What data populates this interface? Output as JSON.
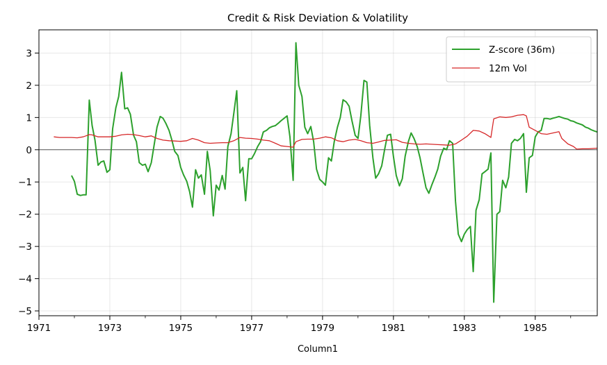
{
  "chart_data": {
    "type": "line",
    "title": "Credit & Risk Deviation & Volatility",
    "xlabel": "Column1",
    "ylabel": "",
    "xlim": [
      1971.0,
      1986.75
    ],
    "ylim": [
      -5.15,
      3.72
    ],
    "x_ticks": [
      1971,
      1973,
      1975,
      1977,
      1979,
      1981,
      1983,
      1985
    ],
    "x_tick_labels": [
      "1971",
      "1973",
      "1975",
      "1977",
      "1979",
      "1981",
      "1983",
      "1985"
    ],
    "y_ticks": [
      -5,
      -4,
      -3,
      -2,
      -1,
      0,
      1,
      2,
      3
    ],
    "y_tick_labels": [
      "−5",
      "−4",
      "−3",
      "−2",
      "−1",
      "0",
      "1",
      "2",
      "3"
    ],
    "grid": true,
    "legend_position": "top-right",
    "reference_line": 0,
    "series": [
      {
        "name": "Z-score (36m)",
        "color": "#2ca02c",
        "points": [
          [
            1971.92,
            -0.8
          ],
          [
            1972.0,
            -0.98
          ],
          [
            1972.08,
            -1.38
          ],
          [
            1972.17,
            -1.42
          ],
          [
            1972.25,
            -1.4
          ],
          [
            1972.33,
            -1.4
          ],
          [
            1972.42,
            1.54
          ],
          [
            1972.5,
            0.75
          ],
          [
            1972.58,
            0.3
          ],
          [
            1972.67,
            -0.48
          ],
          [
            1972.75,
            -0.38
          ],
          [
            1972.83,
            -0.35
          ],
          [
            1972.92,
            -0.7
          ],
          [
            1973.0,
            -0.62
          ],
          [
            1973.08,
            0.65
          ],
          [
            1973.17,
            1.3
          ],
          [
            1973.25,
            1.65
          ],
          [
            1973.33,
            2.4
          ],
          [
            1973.42,
            1.27
          ],
          [
            1973.5,
            1.3
          ],
          [
            1973.58,
            1.1
          ],
          [
            1973.67,
            0.45
          ],
          [
            1973.75,
            0.25
          ],
          [
            1973.83,
            -0.4
          ],
          [
            1973.92,
            -0.48
          ],
          [
            1974.0,
            -0.45
          ],
          [
            1974.08,
            -0.68
          ],
          [
            1974.17,
            -0.4
          ],
          [
            1974.25,
            0.15
          ],
          [
            1974.33,
            0.7
          ],
          [
            1974.42,
            1.03
          ],
          [
            1974.5,
            0.98
          ],
          [
            1974.58,
            0.82
          ],
          [
            1974.67,
            0.6
          ],
          [
            1974.75,
            0.3
          ],
          [
            1974.83,
            -0.05
          ],
          [
            1974.92,
            -0.18
          ],
          [
            1975.0,
            -0.55
          ],
          [
            1975.08,
            -0.78
          ],
          [
            1975.17,
            -0.98
          ],
          [
            1975.25,
            -1.3
          ],
          [
            1975.33,
            -1.78
          ],
          [
            1975.42,
            -0.62
          ],
          [
            1975.5,
            -0.88
          ],
          [
            1975.58,
            -0.78
          ],
          [
            1975.67,
            -1.38
          ],
          [
            1975.75,
            -0.05
          ],
          [
            1975.83,
            -0.65
          ],
          [
            1975.92,
            -2.05
          ],
          [
            1976.0,
            -1.1
          ],
          [
            1976.08,
            -1.25
          ],
          [
            1976.17,
            -0.8
          ],
          [
            1976.25,
            -1.22
          ],
          [
            1976.33,
            0.1
          ],
          [
            1976.42,
            0.5
          ],
          [
            1976.5,
            1.15
          ],
          [
            1976.58,
            1.83
          ],
          [
            1976.67,
            -0.72
          ],
          [
            1976.75,
            -0.55
          ],
          [
            1976.83,
            -1.58
          ],
          [
            1976.92,
            -0.28
          ],
          [
            1977.0,
            -0.28
          ],
          [
            1977.08,
            -0.12
          ],
          [
            1977.17,
            0.1
          ],
          [
            1977.25,
            0.25
          ],
          [
            1977.33,
            0.55
          ],
          [
            1977.42,
            0.6
          ],
          [
            1977.5,
            0.68
          ],
          [
            1977.58,
            0.72
          ],
          [
            1977.67,
            0.75
          ],
          [
            1977.75,
            0.82
          ],
          [
            1977.83,
            0.9
          ],
          [
            1977.92,
            0.98
          ],
          [
            1978.0,
            1.05
          ],
          [
            1978.08,
            0.4
          ],
          [
            1978.17,
            -0.95
          ],
          [
            1978.25,
            3.32
          ],
          [
            1978.33,
            2.0
          ],
          [
            1978.42,
            1.65
          ],
          [
            1978.5,
            0.7
          ],
          [
            1978.58,
            0.5
          ],
          [
            1978.67,
            0.72
          ],
          [
            1978.75,
            0.25
          ],
          [
            1978.83,
            -0.6
          ],
          [
            1978.92,
            -0.92
          ],
          [
            1979.0,
            -1.0
          ],
          [
            1979.08,
            -1.1
          ],
          [
            1979.17,
            -0.25
          ],
          [
            1979.25,
            -0.35
          ],
          [
            1979.33,
            0.25
          ],
          [
            1979.42,
            0.7
          ],
          [
            1979.5,
            1.0
          ],
          [
            1979.58,
            1.55
          ],
          [
            1979.67,
            1.48
          ],
          [
            1979.75,
            1.35
          ],
          [
            1979.83,
            0.9
          ],
          [
            1979.92,
            0.45
          ],
          [
            1980.0,
            0.35
          ],
          [
            1980.08,
            1.05
          ],
          [
            1980.17,
            2.15
          ],
          [
            1980.25,
            2.1
          ],
          [
            1980.33,
            0.75
          ],
          [
            1980.42,
            -0.25
          ],
          [
            1980.5,
            -0.88
          ],
          [
            1980.58,
            -0.75
          ],
          [
            1980.67,
            -0.5
          ],
          [
            1980.75,
            0.0
          ],
          [
            1980.83,
            0.45
          ],
          [
            1980.92,
            0.48
          ],
          [
            1981.0,
            -0.2
          ],
          [
            1981.08,
            -0.8
          ],
          [
            1981.17,
            -1.12
          ],
          [
            1981.25,
            -0.9
          ],
          [
            1981.33,
            -0.2
          ],
          [
            1981.42,
            0.25
          ],
          [
            1981.5,
            0.52
          ],
          [
            1981.58,
            0.35
          ],
          [
            1981.67,
            0.1
          ],
          [
            1981.75,
            -0.25
          ],
          [
            1981.83,
            -0.7
          ],
          [
            1981.92,
            -1.18
          ],
          [
            1982.0,
            -1.35
          ],
          [
            1982.08,
            -1.1
          ],
          [
            1982.17,
            -0.85
          ],
          [
            1982.25,
            -0.6
          ],
          [
            1982.33,
            -0.2
          ],
          [
            1982.42,
            0.05
          ],
          [
            1982.5,
            0.0
          ],
          [
            1982.58,
            0.28
          ],
          [
            1982.67,
            0.2
          ],
          [
            1982.75,
            -1.6
          ],
          [
            1982.83,
            -2.62
          ],
          [
            1982.92,
            -2.85
          ],
          [
            1983.0,
            -2.62
          ],
          [
            1983.08,
            -2.48
          ],
          [
            1983.17,
            -2.38
          ],
          [
            1983.25,
            -3.78
          ],
          [
            1983.33,
            -1.88
          ],
          [
            1983.42,
            -1.55
          ],
          [
            1983.5,
            -0.75
          ],
          [
            1983.58,
            -0.68
          ],
          [
            1983.67,
            -0.6
          ],
          [
            1983.75,
            -0.1
          ],
          [
            1983.83,
            -4.73
          ],
          [
            1983.92,
            -2.0
          ],
          [
            1984.0,
            -1.92
          ],
          [
            1984.08,
            -0.95
          ],
          [
            1984.17,
            -1.18
          ],
          [
            1984.25,
            -0.85
          ],
          [
            1984.33,
            0.2
          ],
          [
            1984.42,
            0.32
          ],
          [
            1984.5,
            0.28
          ],
          [
            1984.58,
            0.35
          ],
          [
            1984.67,
            0.5
          ],
          [
            1984.75,
            -1.32
          ],
          [
            1984.83,
            -0.25
          ],
          [
            1984.92,
            -0.18
          ],
          [
            1985.0,
            0.4
          ],
          [
            1985.08,
            0.55
          ],
          [
            1985.17,
            0.6
          ],
          [
            1985.25,
            0.97
          ],
          [
            1985.33,
            0.97
          ],
          [
            1985.42,
            0.95
          ],
          [
            1985.5,
            0.98
          ],
          [
            1985.58,
            1.0
          ],
          [
            1985.67,
            1.03
          ],
          [
            1985.75,
            1.0
          ],
          [
            1985.83,
            0.97
          ],
          [
            1985.92,
            0.95
          ],
          [
            1986.0,
            0.9
          ],
          [
            1986.08,
            0.88
          ],
          [
            1986.17,
            0.83
          ],
          [
            1986.25,
            0.8
          ],
          [
            1986.33,
            0.77
          ],
          [
            1986.42,
            0.7
          ],
          [
            1986.5,
            0.67
          ],
          [
            1986.58,
            0.62
          ],
          [
            1986.67,
            0.58
          ],
          [
            1986.75,
            0.55
          ]
        ]
      },
      {
        "name": "12m Vol",
        "color": "#d62728",
        "points": [
          [
            1971.42,
            0.4
          ],
          [
            1971.58,
            0.38
          ],
          [
            1971.75,
            0.38
          ],
          [
            1971.92,
            0.38
          ],
          [
            1972.08,
            0.37
          ],
          [
            1972.25,
            0.4
          ],
          [
            1972.42,
            0.47
          ],
          [
            1972.5,
            0.46
          ],
          [
            1972.67,
            0.4
          ],
          [
            1972.83,
            0.4
          ],
          [
            1973.0,
            0.4
          ],
          [
            1973.17,
            0.42
          ],
          [
            1973.33,
            0.46
          ],
          [
            1973.5,
            0.48
          ],
          [
            1973.67,
            0.47
          ],
          [
            1973.83,
            0.44
          ],
          [
            1974.0,
            0.4
          ],
          [
            1974.17,
            0.43
          ],
          [
            1974.33,
            0.35
          ],
          [
            1974.5,
            0.3
          ],
          [
            1974.67,
            0.28
          ],
          [
            1974.83,
            0.27
          ],
          [
            1975.0,
            0.26
          ],
          [
            1975.17,
            0.28
          ],
          [
            1975.33,
            0.35
          ],
          [
            1975.5,
            0.3
          ],
          [
            1975.67,
            0.22
          ],
          [
            1975.83,
            0.2
          ],
          [
            1976.0,
            0.21
          ],
          [
            1976.17,
            0.22
          ],
          [
            1976.33,
            0.22
          ],
          [
            1976.5,
            0.28
          ],
          [
            1976.67,
            0.38
          ],
          [
            1976.83,
            0.36
          ],
          [
            1977.0,
            0.35
          ],
          [
            1977.17,
            0.33
          ],
          [
            1977.33,
            0.3
          ],
          [
            1977.5,
            0.28
          ],
          [
            1977.67,
            0.2
          ],
          [
            1977.83,
            0.12
          ],
          [
            1978.0,
            0.1
          ],
          [
            1978.17,
            0.08
          ],
          [
            1978.25,
            0.25
          ],
          [
            1978.42,
            0.32
          ],
          [
            1978.58,
            0.33
          ],
          [
            1978.75,
            0.33
          ],
          [
            1978.92,
            0.36
          ],
          [
            1979.08,
            0.4
          ],
          [
            1979.25,
            0.37
          ],
          [
            1979.42,
            0.28
          ],
          [
            1979.58,
            0.25
          ],
          [
            1979.75,
            0.3
          ],
          [
            1979.92,
            0.32
          ],
          [
            1980.08,
            0.28
          ],
          [
            1980.25,
            0.22
          ],
          [
            1980.42,
            0.2
          ],
          [
            1980.58,
            0.24
          ],
          [
            1980.75,
            0.29
          ],
          [
            1980.92,
            0.3
          ],
          [
            1981.08,
            0.31
          ],
          [
            1981.25,
            0.23
          ],
          [
            1981.42,
            0.2
          ],
          [
            1981.58,
            0.18
          ],
          [
            1981.75,
            0.17
          ],
          [
            1981.92,
            0.18
          ],
          [
            1982.08,
            0.17
          ],
          [
            1982.25,
            0.16
          ],
          [
            1982.42,
            0.15
          ],
          [
            1982.58,
            0.14
          ],
          [
            1982.75,
            0.18
          ],
          [
            1982.92,
            0.3
          ],
          [
            1983.08,
            0.42
          ],
          [
            1983.25,
            0.6
          ],
          [
            1983.42,
            0.58
          ],
          [
            1983.58,
            0.5
          ],
          [
            1983.75,
            0.38
          ],
          [
            1983.83,
            0.96
          ],
          [
            1984.0,
            1.02
          ],
          [
            1984.17,
            1.0
          ],
          [
            1984.33,
            1.02
          ],
          [
            1984.5,
            1.07
          ],
          [
            1984.67,
            1.09
          ],
          [
            1984.75,
            1.05
          ],
          [
            1984.83,
            0.7
          ],
          [
            1985.0,
            0.6
          ],
          [
            1985.17,
            0.5
          ],
          [
            1985.33,
            0.48
          ],
          [
            1985.5,
            0.52
          ],
          [
            1985.67,
            0.56
          ],
          [
            1985.75,
            0.35
          ],
          [
            1985.92,
            0.18
          ],
          [
            1986.08,
            0.1
          ],
          [
            1986.17,
            0.02
          ],
          [
            1986.33,
            0.03
          ],
          [
            1986.5,
            0.03
          ],
          [
            1986.75,
            0.05
          ]
        ]
      }
    ]
  }
}
